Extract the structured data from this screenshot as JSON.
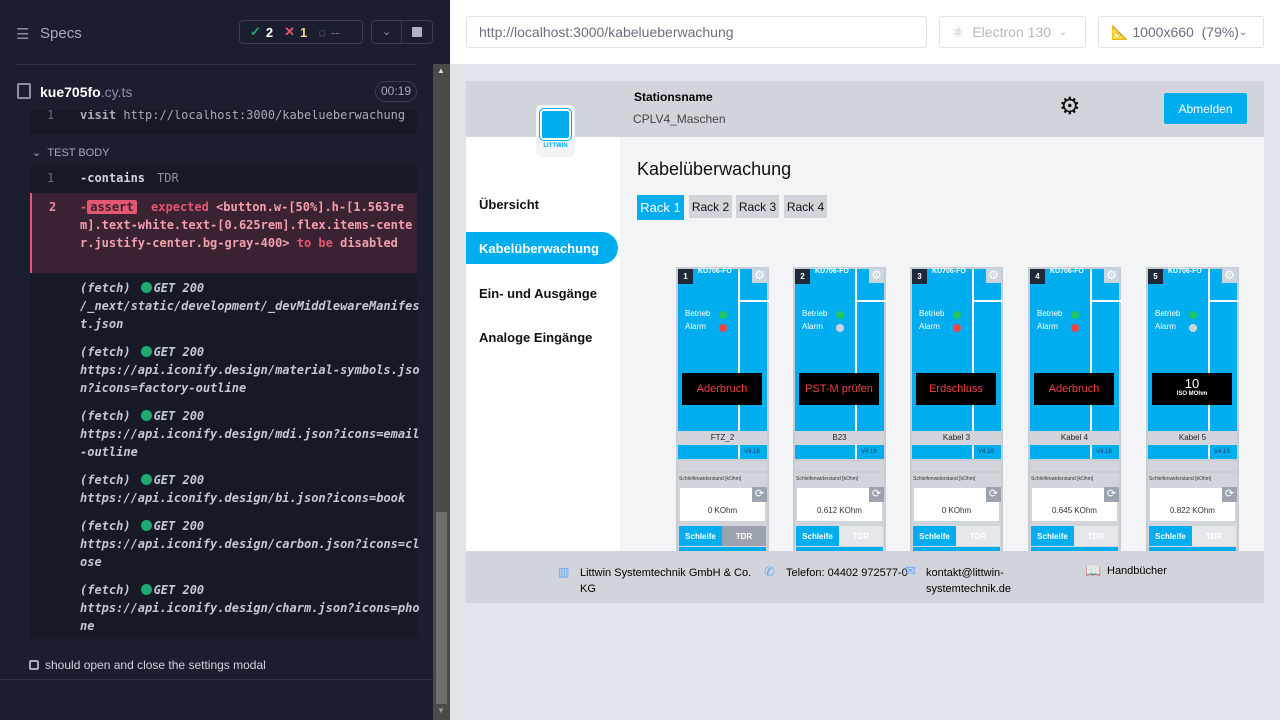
{
  "runner": {
    "title": "Specs",
    "passed": "2",
    "failed": "1",
    "pending": "--",
    "file_name": "kue705fo",
    "file_ext": ".cy.ts",
    "duration": "00:19",
    "visit_line": {
      "num": "1",
      "cmd": "visit",
      "arg": "http://localhost:3000/kabelueberwachung"
    },
    "section": "TEST BODY",
    "commands": [
      {
        "num": "1",
        "cmd": "-contains",
        "arg": "TDR"
      },
      {
        "num": "2",
        "cmd": "-",
        "badge": "assert",
        "text1": "expected",
        "selector": "<button.w-[50%].h-[1.563rem].text-white.text-[0.625rem].flex.items-center.justify-center.bg-gray-400>",
        "text2": "to be",
        "text3": "disabled"
      }
    ],
    "logs": [
      {
        "type": "(fetch)",
        "status": "GET 200",
        "url": "/_next/static/development/_devMiddlewareManifest.json"
      },
      {
        "type": "(fetch)",
        "status": "GET 200",
        "url": "https://api.iconify.design/material-symbols.json?icons=factory-outline"
      },
      {
        "type": "(fetch)",
        "status": "GET 200",
        "url": "https://api.iconify.design/mdi.json?icons=email-outline"
      },
      {
        "type": "(fetch)",
        "status": "GET 200",
        "url": "https://api.iconify.design/bi.json?icons=book"
      },
      {
        "type": "(fetch)",
        "status": "GET 200",
        "url": "https://api.iconify.design/carbon.json?icons=close"
      },
      {
        "type": "(fetch)",
        "status": "GET 200",
        "url": "https://api.iconify.design/charm.json?icons=phone"
      }
    ],
    "next_test": "should open and close the settings modal"
  },
  "browser": {
    "url": "http://localhost:3000/kabelueberwachung",
    "engine": "Electron 130",
    "viewport": "1000x660",
    "zoom": "(79%)"
  },
  "app": {
    "station_label": "Stationsname",
    "station_name": "CPLV4_Maschen",
    "logout": "Abmelden",
    "logo_text": "LITTWIN",
    "page_title": "Kabelüberwachung",
    "nav": [
      "Übersicht",
      "Kabelüberwachung",
      "Ein- und Ausgänge",
      "Analoge Eingänge"
    ],
    "active_nav": 1,
    "racks": [
      "Rack 1",
      "Rack 2",
      "Rack 3",
      "Rack 4"
    ],
    "active_rack": 0,
    "accent": "#00aeef",
    "modules": [
      {
        "num": "1",
        "type": "KÜ706-FO",
        "betrieb": "Betrieb",
        "alarm": "Alarm",
        "alarm_color": "#ef4444",
        "display": "Aderbruch",
        "name": "FTZ_2",
        "version": "V4.19",
        "res_label": "Schleifenwiderstand [kOhm]",
        "value": "0 KOhm",
        "btn1": "Schleife",
        "btn2": "TDR",
        "tdr_disabled": true
      },
      {
        "num": "2",
        "type": "KÜ706-FO",
        "betrieb": "Betrieb",
        "alarm": "Alarm",
        "alarm_color": "#d1d5db",
        "display": "PST-M prüfen",
        "name": "B23",
        "version": "V4.19",
        "res_label": "Schleifenwiderstand [kOhm]",
        "value": "0.612 KOhm",
        "btn1": "Schleife",
        "btn2": "TDR",
        "tdr_disabled": false
      },
      {
        "num": "3",
        "type": "KÜ706-FO",
        "betrieb": "Betrieb",
        "alarm": "Alarm",
        "alarm_color": "#ef4444",
        "display": "Erdschluss",
        "name": "Kabel 3",
        "version": "V4.19",
        "res_label": "Schleifenwiderstand [kOhm]",
        "value": "0 KOhm",
        "btn1": "Schleife",
        "btn2": "TDR",
        "tdr_disabled": false
      },
      {
        "num": "4",
        "type": "KÜ706-FO",
        "betrieb": "Betrieb",
        "alarm": "Alarm",
        "alarm_color": "#ef4444",
        "display": "Aderbruch",
        "name": "Kabel 4",
        "version": "V4.19",
        "res_label": "Schleifenwiderstand [kOhm]",
        "value": "0.645 KOhm",
        "btn1": "Schleife",
        "btn2": "TDR",
        "tdr_disabled": false
      },
      {
        "num": "5",
        "type": "KÜ706-FO",
        "betrieb": "Betrieb",
        "alarm": "Alarm",
        "alarm_color": "#d1d5db",
        "display": "10",
        "display_sub": "ISO MOhm",
        "name": "Kabel 5",
        "version": "V4.19",
        "res_label": "Schleifenwiderstand [kOhm]",
        "value": "0.822 KOhm",
        "btn1": "Schleife",
        "btn2": "TDR",
        "tdr_disabled": false
      }
    ],
    "footer": {
      "company": "Littwin Systemtechnik GmbH & Co. KG",
      "phone": "Telefon: 04402 972577-0",
      "email": "kontakt@littwin-systemtechnik.de",
      "manuals": "Handbücher"
    }
  }
}
